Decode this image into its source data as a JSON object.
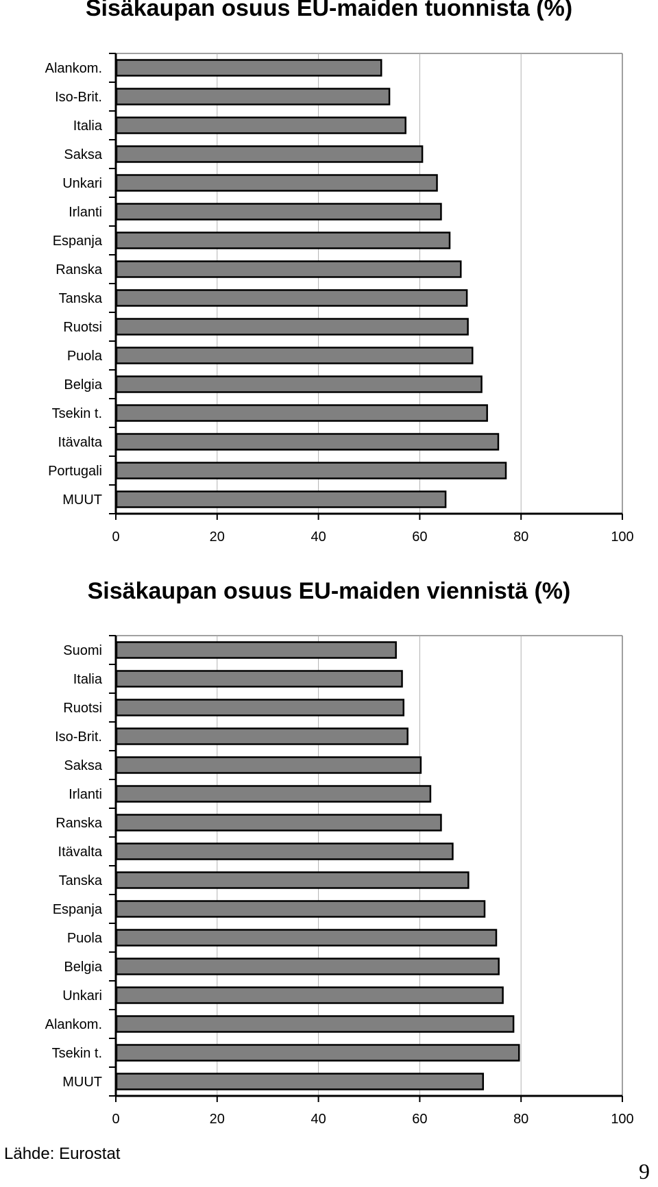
{
  "chart_data": [
    {
      "type": "bar",
      "orientation": "horizontal",
      "title": "Sisäkaupan osuus EU-maiden tuonnista (%)",
      "categories": [
        "Alankom.",
        "Iso-Brit.",
        "Italia",
        "Saksa",
        "Unkari",
        "Irlanti",
        "Espanja",
        "Ranska",
        "Tanska",
        "Ruotsi",
        "Puola",
        "Belgia",
        "Tsekin t.",
        "Itävalta",
        "Portugali",
        "MUUT"
      ],
      "values": [
        52.4,
        54.0,
        57.2,
        60.5,
        63.4,
        64.2,
        65.9,
        68.1,
        69.3,
        69.5,
        70.4,
        72.2,
        73.3,
        75.5,
        77.0,
        65.1
      ],
      "xlim": [
        0,
        100
      ],
      "xticks": [
        "0",
        "20",
        "40",
        "60",
        "80",
        "100"
      ],
      "grid": "vertical",
      "bar_color": "#808080"
    },
    {
      "type": "bar",
      "orientation": "horizontal",
      "title": "Sisäkaupan osuus EU-maiden viennistä (%)",
      "categories": [
        "Suomi",
        "Italia",
        "Ruotsi",
        "Iso-Brit.",
        "Saksa",
        "Irlanti",
        "Ranska",
        "Itävalta",
        "Tanska",
        "Espanja",
        "Puola",
        "Belgia",
        "Unkari",
        "Alankom.",
        "Tsekin t.",
        "MUUT"
      ],
      "values": [
        55.3,
        56.5,
        56.8,
        57.6,
        60.2,
        62.1,
        64.2,
        66.5,
        69.6,
        72.8,
        75.1,
        75.6,
        76.4,
        78.5,
        79.6,
        72.5
      ],
      "xlim": [
        0,
        100
      ],
      "xticks": [
        "0",
        "20",
        "40",
        "60",
        "80",
        "100"
      ],
      "grid": "vertical",
      "bar_color": "#808080"
    }
  ],
  "footer": {
    "source": "Lähde: Eurostat",
    "page_number": "9"
  }
}
